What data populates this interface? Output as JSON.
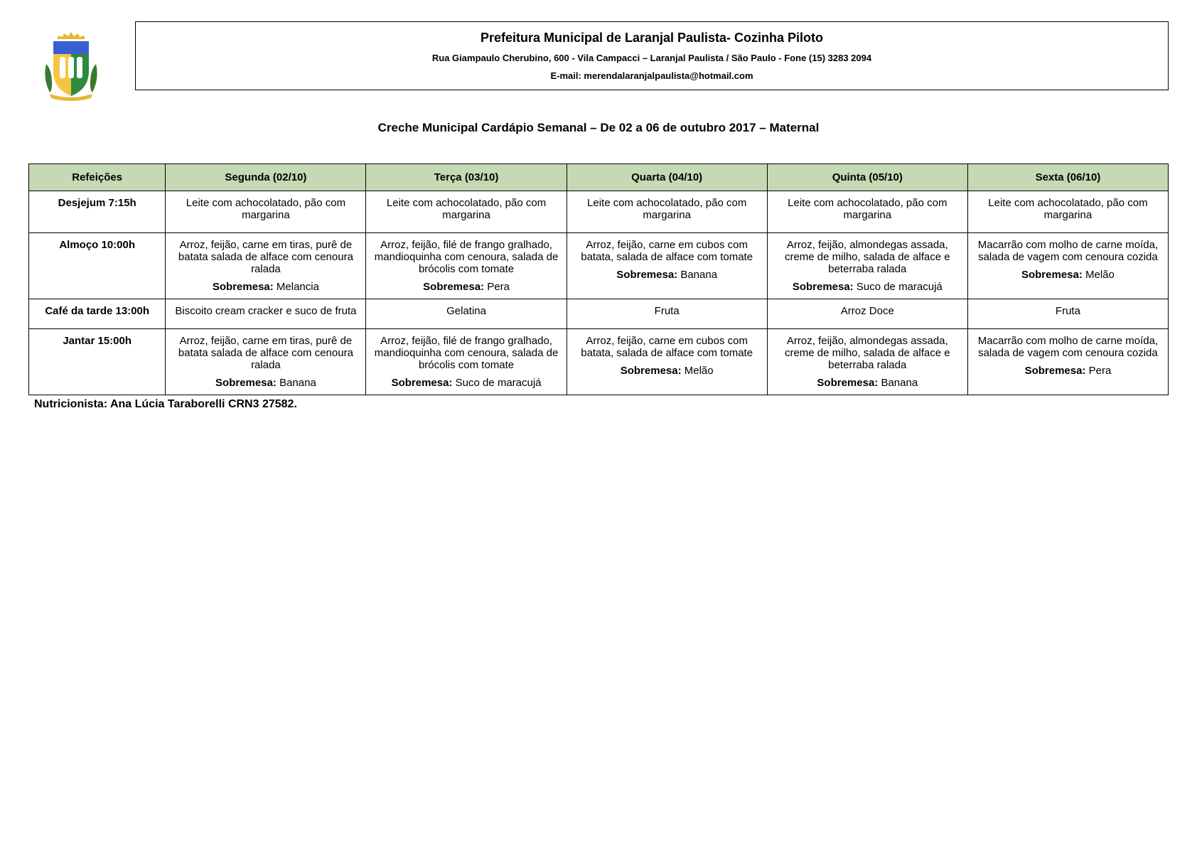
{
  "header": {
    "title": "Prefeitura Municipal de Laranjal Paulista- Cozinha Piloto",
    "address": "Rua Giampaulo Cherubino, 600 - Vila Campacci – Laranjal Paulista / São Paulo - Fone (15) 3283 2094",
    "email_label": "E-mail: merendalaranjalpaulista@hotmail.com"
  },
  "subtitle": "Creche Municipal Cardápio Semanal – De 02 a 06 de outubro 2017 – Maternal",
  "table": {
    "header_bg": "#c5d9b4",
    "columns": [
      "Refeições",
      "Segunda (02/10)",
      "Terça (03/10)",
      "Quarta (04/10)",
      "Quinta (05/10)",
      "Sexta (06/10)"
    ],
    "dessert_label": "Sobremesa:",
    "rows": [
      {
        "meal": "Desjejum 7:15h",
        "cells": [
          {
            "main": "Leite com achocolatado, pão com margarina",
            "dessert": null
          },
          {
            "main": "Leite com achocolatado, pão com margarina",
            "dessert": null
          },
          {
            "main": "Leite com achocolatado, pão com margarina",
            "dessert": null
          },
          {
            "main": "Leite com achocolatado, pão com margarina",
            "dessert": null
          },
          {
            "main": "Leite com achocolatado, pão com margarina",
            "dessert": null
          }
        ]
      },
      {
        "meal": "Almoço 10:00h",
        "cells": [
          {
            "main": "Arroz, feijão, carne em tiras, purê de batata salada de alface com cenoura ralada",
            "dessert": "Melancia"
          },
          {
            "main": "Arroz, feijão, filé de frango gralhado, mandioquinha com cenoura, salada de brócolis com tomate",
            "dessert": "Pera"
          },
          {
            "main": "Arroz, feijão, carne em cubos com batata, salada de alface com tomate",
            "dessert": "Banana"
          },
          {
            "main": "Arroz, feijão, almondegas assada, creme de milho, salada de alface e beterraba ralada",
            "dessert": "Suco de maracujá"
          },
          {
            "main": "Macarrão com molho de carne moída, salada de vagem com cenoura cozida",
            "dessert": "Melão"
          }
        ]
      },
      {
        "meal": "Café da tarde 13:00h",
        "cells": [
          {
            "main": "Biscoito cream cracker e suco de fruta",
            "dessert": null
          },
          {
            "main": "Gelatina",
            "dessert": null
          },
          {
            "main": "Fruta",
            "dessert": null
          },
          {
            "main": "Arroz Doce",
            "dessert": null
          },
          {
            "main": "Fruta",
            "dessert": null
          }
        ]
      },
      {
        "meal": "Jantar 15:00h",
        "cells": [
          {
            "main": "Arroz, feijão, carne em tiras, purê de batata salada de alface com cenoura ralada",
            "dessert": "Banana"
          },
          {
            "main": "Arroz, feijão, filé de frango gralhado, mandioquinha com cenoura, salada de brócolis com tomate",
            "dessert": "Suco de maracujá"
          },
          {
            "main": "Arroz, feijão, carne em cubos com batata, salada de alface com tomate",
            "dessert": "Melão"
          },
          {
            "main": "Arroz, feijão, almondegas assada, creme de milho, salada de alface e beterraba ralada",
            "dessert": "Banana"
          },
          {
            "main": "Macarrão com molho de carne moída, salada de vagem com cenoura cozida",
            "dessert": "Pera"
          }
        ]
      }
    ]
  },
  "footer": "Nutricionista: Ana Lúcia Taraborelli   CRN3 27582.",
  "logo_colors": {
    "shield_left": "#f5c542",
    "shield_right": "#2e8b3d",
    "top": "#3b5fd1",
    "crown": "#e8b730",
    "leaf": "#3a7a2e"
  }
}
